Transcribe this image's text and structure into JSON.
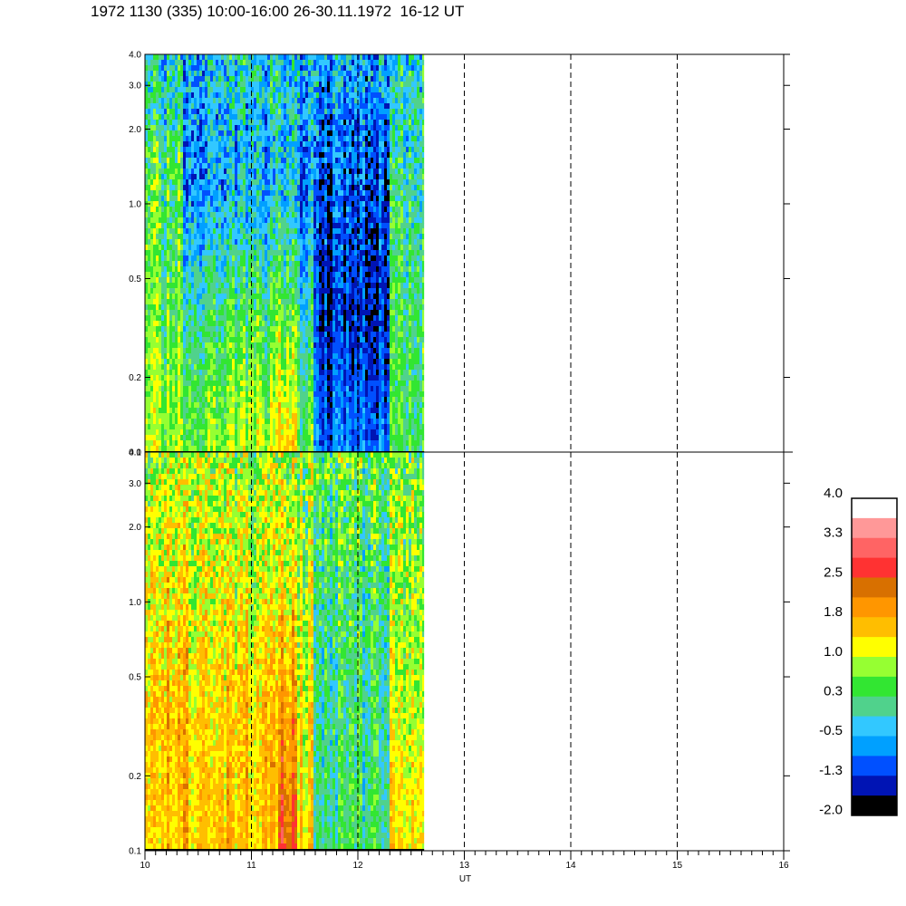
{
  "title": "1972 1130 (335) 10:00-16:00 26-30.11.1972  16-12 UT",
  "chart_data": {
    "type": "heatmap",
    "x_axis": {
      "label": "UT",
      "range": [
        10,
        16
      ],
      "major_ticks": [
        "10",
        "11",
        "12",
        "13",
        "14",
        "15",
        "16"
      ],
      "minor_per_major": 10,
      "dashed_gridlines_at": [
        11,
        12,
        13,
        14,
        15
      ]
    },
    "y_axis": {
      "scale": "log",
      "range": [
        0.1,
        4.0
      ],
      "ticks": [
        {
          "value": 0.1,
          "label": "0.1"
        },
        {
          "value": 0.2,
          "label": "0.2"
        },
        {
          "value": 0.5,
          "label": "0.5"
        },
        {
          "value": 1.0,
          "label": "1.0"
        },
        {
          "value": 2.0,
          "label": "2.0"
        },
        {
          "value": 3.0,
          "label": "3.0"
        },
        {
          "value": 4.0,
          "label": "4.0"
        }
      ]
    },
    "data_x_end": 12.62,
    "time_bands": [
      10.0,
      10.35,
      10.8,
      11.25,
      11.42,
      11.58,
      12.3,
      12.62
    ],
    "panels": [
      {
        "id": "upper",
        "band_levels": [
          [
            0.8,
            0.5,
            0.3,
            -0.3
          ],
          [
            0.7,
            0.2,
            -0.7,
            -0.4
          ],
          [
            0.9,
            0.3,
            -0.6,
            -0.3
          ],
          [
            1.4,
            0.6,
            -0.4,
            -0.3
          ],
          [
            0.5,
            0.0,
            -0.8,
            -0.5
          ],
          [
            -0.9,
            -1.4,
            -1.2,
            -0.6
          ],
          [
            0.3,
            0.3,
            0.0,
            -0.2
          ]
        ]
      },
      {
        "id": "lower",
        "band_levels": [
          [
            1.5,
            1.6,
            1.3,
            0.9
          ],
          [
            1.6,
            1.4,
            1.2,
            0.9
          ],
          [
            1.5,
            1.5,
            1.1,
            0.8
          ],
          [
            2.6,
            2.0,
            1.4,
            0.9
          ],
          [
            1.4,
            1.2,
            0.9,
            0.6
          ],
          [
            0.2,
            0.1,
            0.2,
            0.5
          ],
          [
            1.4,
            1.0,
            0.8,
            0.6
          ]
        ]
      }
    ],
    "colorbar": {
      "labels": [
        "4.0",
        "3.3",
        "2.5",
        "1.8",
        "1.0",
        "0.3",
        "-0.5",
        "-1.3",
        "-2.0"
      ],
      "range": [
        -2.0,
        4.0
      ],
      "colors": [
        "#ffffff",
        "#ff9898",
        "#ff6464",
        "#ff3232",
        "#d87000",
        "#ff9600",
        "#ffbe00",
        "#ffff00",
        "#96ff32",
        "#32e632",
        "#50d28c",
        "#32c8ff",
        "#00a0ff",
        "#0050ff",
        "#0014b4",
        "#000000"
      ]
    }
  }
}
